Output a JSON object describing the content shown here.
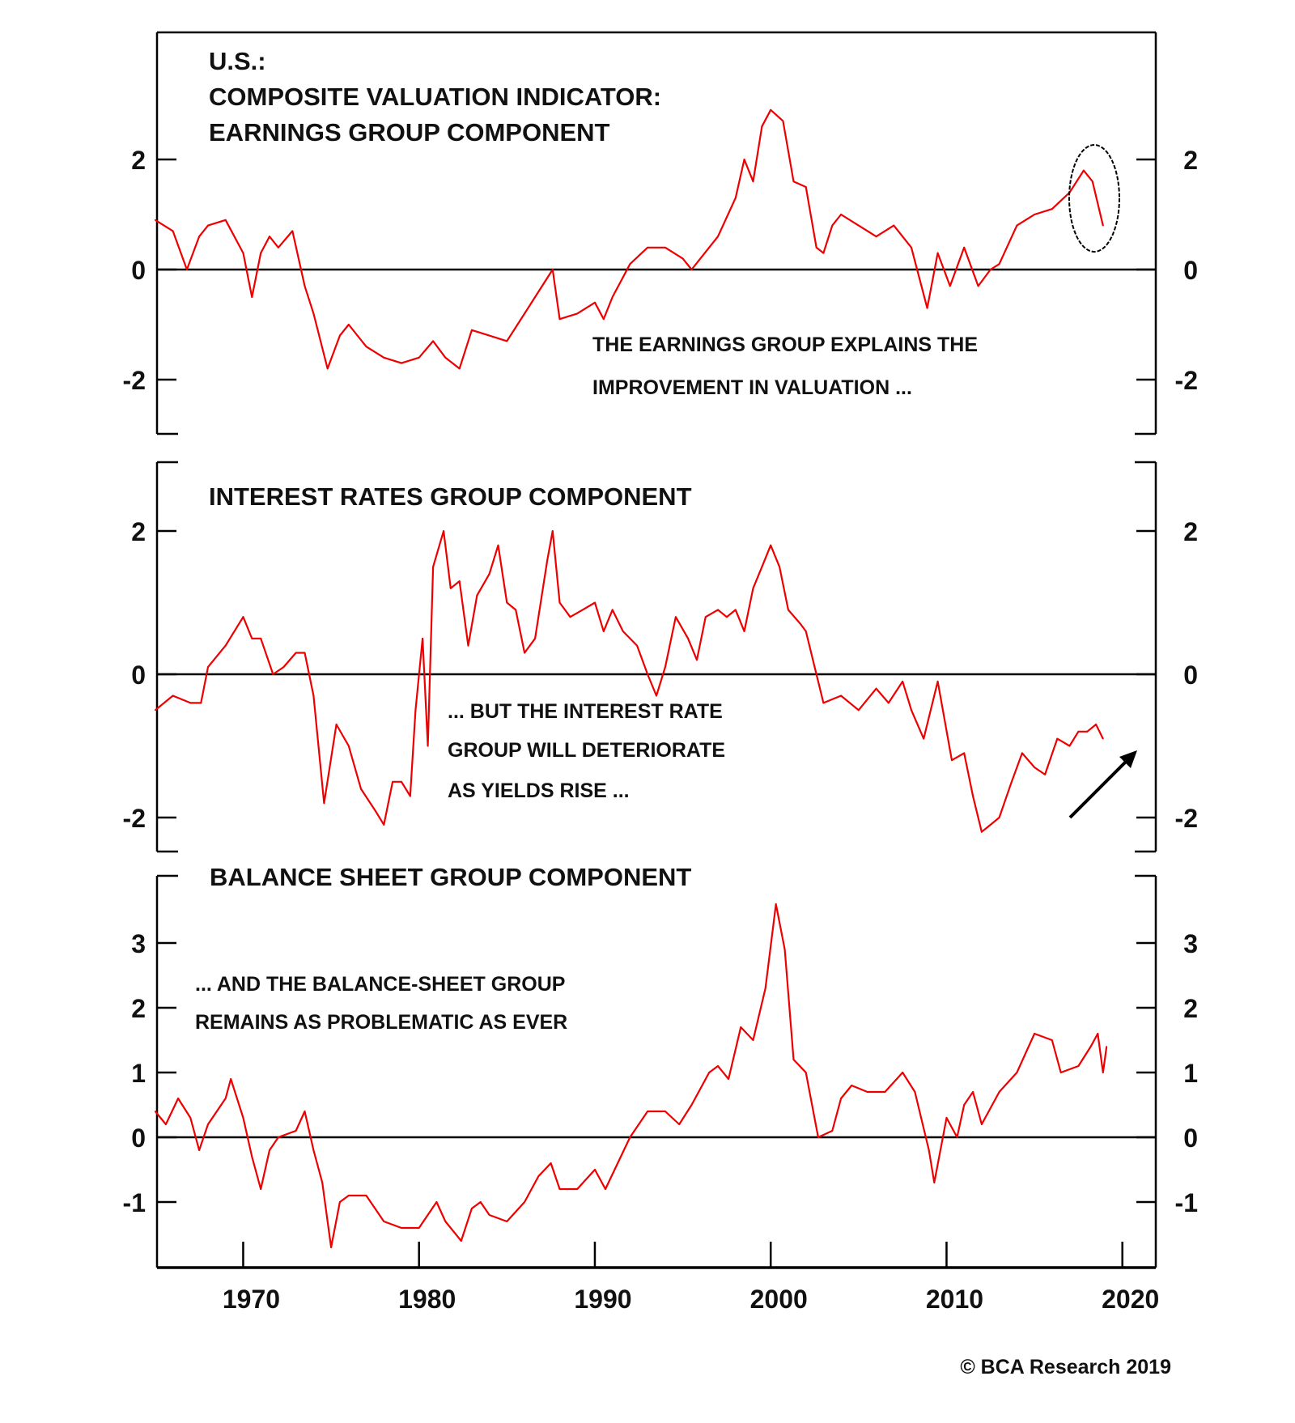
{
  "colors": {
    "series": "#ee0000",
    "axis": "#000000",
    "annotation": "#000000"
  },
  "copyright": "© BCA Research 2019",
  "chart_data": [
    {
      "type": "line",
      "title_lines": [
        "U.S.:",
        "COMPOSITE VALUATION INDICATOR:",
        "EARNINGS GROUP COMPONENT"
      ],
      "annotation_lines": [
        "THE EARNINGS GROUP EXPLAINS THE",
        "IMPROVEMENT IN VALUATION ..."
      ],
      "callout": "ellipse around 2017-2019",
      "ylim": [
        -3.1,
        4.5
      ],
      "yticks": [
        -2,
        0,
        2
      ],
      "ytick_labels": [
        "-2",
        "0",
        "2"
      ],
      "x": [
        1965.0,
        1966,
        1966.8,
        1967.5,
        1968,
        1969,
        1970,
        1970.5,
        1971,
        1971.5,
        1972,
        1972.8,
        1973.5,
        1974,
        1974.8,
        1975.5,
        1976,
        1977,
        1978,
        1979,
        1980,
        1980.8,
        1981.5,
        1982.3,
        1983,
        1984,
        1985,
        1986,
        1986.6,
        1987.6,
        1988,
        1989,
        1990,
        1990.5,
        1991,
        1992,
        1993,
        1994,
        1995,
        1995.5,
        1996,
        1997,
        1998,
        1998.5,
        1999,
        1999.5,
        2000,
        2000.7,
        2001.3,
        2002,
        2002.6,
        2003,
        2003.5,
        2004,
        2005,
        2006,
        2007,
        2008,
        2008.9,
        2009.5,
        2010.2,
        2011,
        2011.8,
        2012.5,
        2013,
        2014,
        2015,
        2016,
        2017,
        2017.8,
        2018.3,
        2018.9
      ],
      "values": [
        0.9,
        0.7,
        0.0,
        0.6,
        0.8,
        0.9,
        0.3,
        -0.5,
        0.3,
        0.6,
        0.4,
        0.7,
        -0.3,
        -0.8,
        -1.8,
        -1.2,
        -1.0,
        -1.4,
        -1.6,
        -1.7,
        -1.6,
        -1.3,
        -1.6,
        -1.8,
        -1.1,
        -1.2,
        -1.3,
        -0.8,
        -0.5,
        0.0,
        -0.9,
        -0.8,
        -0.6,
        -0.9,
        -0.5,
        0.1,
        0.4,
        0.4,
        0.2,
        0.0,
        0.2,
        0.6,
        1.3,
        2.0,
        1.6,
        2.6,
        2.9,
        2.7,
        1.6,
        1.5,
        0.4,
        0.3,
        0.8,
        1.0,
        0.8,
        0.6,
        0.8,
        0.4,
        -0.7,
        0.3,
        -0.3,
        0.4,
        -0.3,
        0.0,
        0.1,
        0.8,
        1.0,
        1.1,
        1.4,
        1.8,
        1.6,
        0.8
      ]
    },
    {
      "type": "line",
      "title_lines": [
        "INTEREST RATES GROUP COMPONENT"
      ],
      "annotation_lines": [
        "... BUT THE INTEREST RATE",
        "GROUP WILL DETERIORATE",
        "AS YIELDS RISE ..."
      ],
      "callout": "up arrow",
      "ylim": [
        -2.5,
        2.7
      ],
      "yticks": [
        -2,
        0,
        2
      ],
      "ytick_labels": [
        "-2",
        "0",
        "2"
      ],
      "x": [
        1965,
        1966,
        1967,
        1967.6,
        1968,
        1969,
        1970,
        1970.5,
        1971,
        1971.7,
        1972.3,
        1973,
        1973.5,
        1974,
        1974.6,
        1975.3,
        1976,
        1976.7,
        1977.5,
        1978,
        1978.5,
        1979,
        1979.5,
        1979.8,
        1980.2,
        1980.5,
        1980.8,
        1981.4,
        1981.8,
        1982.3,
        1982.8,
        1983.3,
        1984,
        1984.5,
        1985,
        1985.5,
        1986,
        1986.6,
        1987.3,
        1987.6,
        1988,
        1988.6,
        1989.3,
        1990,
        1990.5,
        1991,
        1991.6,
        1992.4,
        1993,
        1993.5,
        1994,
        1994.6,
        1995.3,
        1995.8,
        1996.3,
        1997,
        1997.5,
        1998,
        1998.5,
        1999,
        1999.5,
        2000,
        2000.5,
        2001,
        2001.7,
        2002,
        2002.6,
        2003,
        2004,
        2005,
        2006,
        2006.7,
        2007.5,
        2008,
        2008.7,
        2009.5,
        2010.3,
        2011,
        2011.5,
        2012,
        2012.5,
        2013,
        2013.7,
        2014.3,
        2015,
        2015.6,
        2016.3,
        2017,
        2017.5,
        2018,
        2018.5,
        2018.9
      ],
      "values": [
        -0.5,
        -0.3,
        -0.4,
        -0.4,
        0.1,
        0.4,
        0.8,
        0.5,
        0.5,
        0.0,
        0.1,
        0.3,
        0.3,
        -0.3,
        -1.8,
        -0.7,
        -1.0,
        -1.6,
        -1.9,
        -2.1,
        -1.5,
        -1.5,
        -1.7,
        -0.5,
        0.5,
        -1.0,
        1.5,
        2.0,
        1.2,
        1.3,
        0.4,
        1.1,
        1.4,
        1.8,
        1.0,
        0.9,
        0.3,
        0.5,
        1.6,
        2.0,
        1.0,
        0.8,
        0.9,
        1.0,
        0.6,
        0.9,
        0.6,
        0.4,
        0.0,
        -0.3,
        0.1,
        0.8,
        0.5,
        0.2,
        0.8,
        0.9,
        0.8,
        0.9,
        0.6,
        1.2,
        1.5,
        1.8,
        1.5,
        0.9,
        0.7,
        0.6,
        0.0,
        -0.4,
        -0.3,
        -0.5,
        -0.2,
        -0.4,
        -0.1,
        -0.5,
        -0.9,
        -0.1,
        -1.2,
        -1.1,
        -1.7,
        -2.2,
        -2.1,
        -2.0,
        -1.5,
        -1.1,
        -1.3,
        -1.4,
        -0.9,
        -1.0,
        -0.8,
        -0.8,
        -0.7,
        -0.9
      ]
    },
    {
      "type": "line",
      "title_lines": [
        "BALANCE SHEET GROUP COMPONENT"
      ],
      "annotation_lines": [
        "... AND THE BALANCE-SHEET GROUP",
        "REMAINS AS PROBLEMATIC AS EVER"
      ],
      "ylim": [
        -2.0,
        4.0
      ],
      "yticks": [
        -1,
        0,
        1,
        2,
        3
      ],
      "ytick_labels": [
        "-1",
        "0",
        "1",
        "2",
        "3"
      ],
      "xlim": [
        1965,
        2022
      ],
      "xticks": [
        1970,
        1980,
        1990,
        2000,
        2010,
        2020
      ],
      "xtick_labels": [
        "1970",
        "1980",
        "1990",
        "2000",
        "2010",
        "2020"
      ],
      "x": [
        1965,
        1965.6,
        1966.3,
        1967,
        1967.5,
        1968,
        1969,
        1969.3,
        1970,
        1970.5,
        1971,
        1971.5,
        1972,
        1973,
        1973.5,
        1974,
        1974.5,
        1975,
        1975.5,
        1976,
        1977,
        1978,
        1979,
        1980,
        1981,
        1981.5,
        1982.4,
        1983,
        1983.5,
        1984,
        1985,
        1986,
        1986.8,
        1987.5,
        1988,
        1989,
        1990,
        1990.6,
        1991.3,
        1992,
        1993,
        1994,
        1994.8,
        1995.5,
        1996.5,
        1997,
        1997.6,
        1998.3,
        1999,
        1999.7,
        2000.3,
        2000.8,
        2001.3,
        2002,
        2002.7,
        2003.5,
        2004,
        2004.6,
        2005.5,
        2006.5,
        2007.5,
        2008.2,
        2009,
        2009.3,
        2010,
        2010.6,
        2011,
        2011.5,
        2012,
        2013,
        2014,
        2015,
        2016,
        2016.5,
        2017.5,
        2018.2,
        2018.6,
        2018.9,
        2019.1
      ],
      "values": [
        0.4,
        0.2,
        0.6,
        0.3,
        -0.2,
        0.2,
        0.6,
        0.9,
        0.3,
        -0.3,
        -0.8,
        -0.2,
        0.0,
        0.1,
        0.4,
        -0.2,
        -0.7,
        -1.7,
        -1.0,
        -0.9,
        -0.9,
        -1.3,
        -1.4,
        -1.4,
        -1.0,
        -1.3,
        -1.6,
        -1.1,
        -1.0,
        -1.2,
        -1.3,
        -1.0,
        -0.6,
        -0.4,
        -0.8,
        -0.8,
        -0.5,
        -0.8,
        -0.4,
        0.0,
        0.4,
        0.4,
        0.2,
        0.5,
        1.0,
        1.1,
        0.9,
        1.7,
        1.5,
        2.3,
        3.6,
        2.9,
        1.2,
        1.0,
        0.0,
        0.1,
        0.6,
        0.8,
        0.7,
        0.7,
        1.0,
        0.7,
        -0.2,
        -0.7,
        0.3,
        0.0,
        0.5,
        0.7,
        0.2,
        0.7,
        1.0,
        1.6,
        1.5,
        1.0,
        1.1,
        1.4,
        1.6,
        1.0,
        1.4
      ]
    }
  ]
}
